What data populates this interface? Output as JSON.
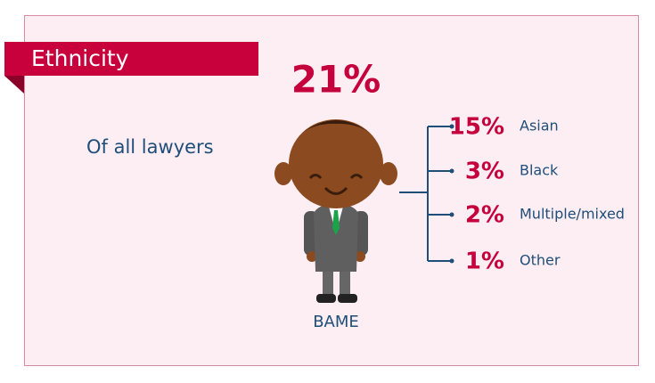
{
  "header": {
    "title": "Ethnicity"
  },
  "subtitle": "Of all lawyers",
  "total": {
    "value": "21%",
    "label": "BAME"
  },
  "breakdown": [
    {
      "value": "15%",
      "label": "Asian"
    },
    {
      "value": "3%",
      "label": "Black"
    },
    {
      "value": "2%",
      "label": "Multiple/mixed"
    },
    {
      "value": "1%",
      "label": "Other"
    }
  ]
}
